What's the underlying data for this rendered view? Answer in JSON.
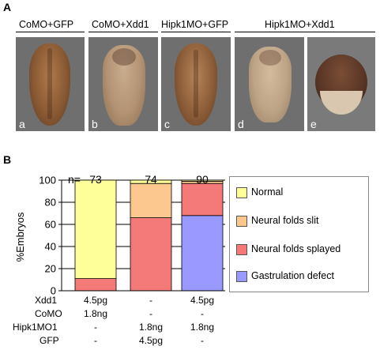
{
  "panel_a": {
    "letter": "A",
    "groups": [
      {
        "label": "CoMO+GFP"
      },
      {
        "label": "CoMO+Xdd1"
      },
      {
        "label": "Hipk1MO+GFP"
      },
      {
        "label": "Hipk1MO+Xdd1"
      }
    ],
    "photos": [
      {
        "sub": "a",
        "embryo_color": "#8a5a34"
      },
      {
        "sub": "b",
        "embryo_color": "#b39373"
      },
      {
        "sub": "c",
        "embryo_color": "#8d5e39"
      },
      {
        "sub": "d",
        "embryo_color": "#bea486"
      },
      {
        "sub": "e",
        "embryo_color": "#5a3626"
      }
    ]
  },
  "panel_b": {
    "letter": "B",
    "n_prefix": "n=",
    "legend": [
      {
        "label": "Normal",
        "color": "#ffff99"
      },
      {
        "label": "Neural folds slit",
        "color": "#fcc890"
      },
      {
        "label": "Neural folds splayed",
        "color": "#f47a7a"
      },
      {
        "label": "Gastrulation defect",
        "color": "#9999ff"
      }
    ],
    "conditions": {
      "rows": [
        {
          "label": "Xdd1",
          "values": [
            "4.5pg",
            "-",
            "4.5pg"
          ]
        },
        {
          "label": "CoMO",
          "values": [
            "1.8ng",
            "-",
            "-"
          ]
        },
        {
          "label": "Hipk1MO1",
          "values": [
            "-",
            "1.8ng",
            "1.8ng"
          ]
        },
        {
          "label": "GFP",
          "values": [
            "-",
            "4.5pg",
            "-"
          ]
        }
      ]
    }
  },
  "chart_data": {
    "type": "bar",
    "stacked": true,
    "categories": [
      "73",
      "74",
      "90"
    ],
    "ylabel": "%Embryos",
    "ylim": [
      0,
      100
    ],
    "yticks": [
      0,
      20,
      40,
      60,
      80,
      100
    ],
    "grid": true,
    "legend_position": "right",
    "series": [
      {
        "name": "Gastrulation defect",
        "color": "#9999ff",
        "values": [
          0,
          0,
          68
        ]
      },
      {
        "name": "Neural folds splayed",
        "color": "#f47a7a",
        "values": [
          11,
          66,
          29
        ]
      },
      {
        "name": "Neural folds slit",
        "color": "#fcc890",
        "values": [
          0,
          31,
          2
        ]
      },
      {
        "name": "Normal",
        "color": "#ffff99",
        "values": [
          89,
          3,
          1
        ]
      }
    ]
  }
}
